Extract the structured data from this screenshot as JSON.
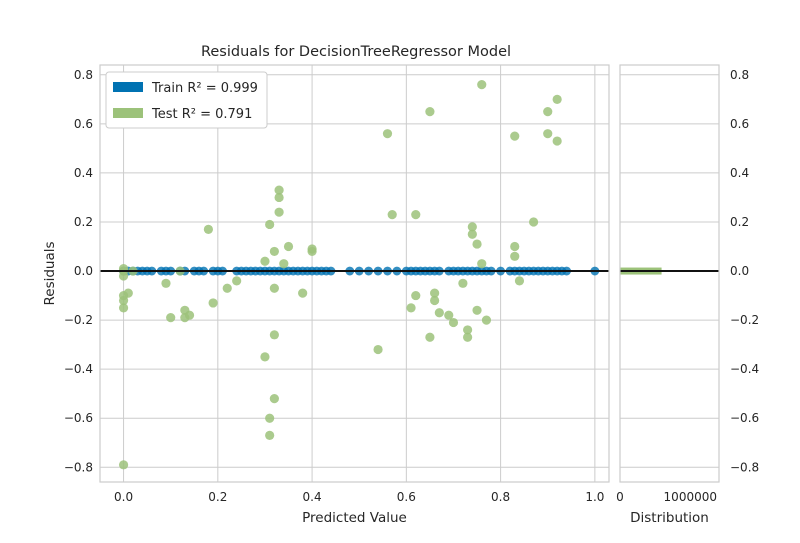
{
  "chart_data": {
    "type": "scatter",
    "title": "Residuals for DecisionTreeRegressor Model",
    "xlabel": "Predicted Value",
    "ylabel": "Residuals",
    "xlim": [
      -0.05,
      1.03
    ],
    "ylim": [
      -0.86,
      0.84
    ],
    "xticks": [
      0.0,
      0.2,
      0.4,
      0.6,
      0.8,
      1.0
    ],
    "xtick_labels": [
      "0.0",
      "0.2",
      "0.4",
      "0.6",
      "0.8",
      "1.0"
    ],
    "yticks": [
      -0.8,
      -0.6,
      -0.4,
      -0.2,
      0.0,
      0.2,
      0.4,
      0.6,
      0.8
    ],
    "ytick_labels": [
      "−0.8",
      "−0.6",
      "−0.4",
      "−0.2",
      "0.0",
      "0.2",
      "0.4",
      "0.6",
      "0.8"
    ],
    "grid": true,
    "legend_position": "top-left",
    "reference_line": 0,
    "series": [
      {
        "name": "Train",
        "legend_label": "Train R² = 0.999",
        "color": "#0072B2",
        "x": [
          0.0,
          0.0,
          0.01,
          0.02,
          0.03,
          0.04,
          0.05,
          0.06,
          0.08,
          0.09,
          0.1,
          0.12,
          0.13,
          0.15,
          0.16,
          0.17,
          0.19,
          0.2,
          0.21,
          0.24,
          0.25,
          0.26,
          0.27,
          0.28,
          0.29,
          0.3,
          0.31,
          0.32,
          0.33,
          0.34,
          0.35,
          0.36,
          0.37,
          0.38,
          0.39,
          0.4,
          0.41,
          0.42,
          0.43,
          0.44,
          0.48,
          0.5,
          0.52,
          0.54,
          0.56,
          0.58,
          0.6,
          0.61,
          0.62,
          0.63,
          0.64,
          0.65,
          0.66,
          0.67,
          0.69,
          0.7,
          0.71,
          0.72,
          0.73,
          0.74,
          0.75,
          0.76,
          0.77,
          0.78,
          0.8,
          0.82,
          0.83,
          0.84,
          0.85,
          0.86,
          0.87,
          0.88,
          0.89,
          0.9,
          0.91,
          0.92,
          0.93,
          0.94,
          1.0
        ],
        "y": [
          0.0,
          0.0,
          0.0,
          0.0,
          0.0,
          0.0,
          0.0,
          0.0,
          0.0,
          0.0,
          0.0,
          0.0,
          0.0,
          0.0,
          0.0,
          0.0,
          0.0,
          0.0,
          0.0,
          0.0,
          0.0,
          0.0,
          0.0,
          0.0,
          0.0,
          0.0,
          0.0,
          0.0,
          0.0,
          0.0,
          0.0,
          0.0,
          0.0,
          0.0,
          0.0,
          0.0,
          0.0,
          0.0,
          0.0,
          0.0,
          0.0,
          0.0,
          0.0,
          0.0,
          0.0,
          0.0,
          0.0,
          0.0,
          0.0,
          0.0,
          0.0,
          0.0,
          0.0,
          0.0,
          0.0,
          0.0,
          0.0,
          0.0,
          0.0,
          0.0,
          0.0,
          0.0,
          0.0,
          0.0,
          0.0,
          0.0,
          0.0,
          0.0,
          0.0,
          0.0,
          0.0,
          0.0,
          0.0,
          0.0,
          0.0,
          0.0,
          0.0,
          0.0,
          0.0
        ]
      },
      {
        "name": "Test",
        "legend_label": "Test R² = 0.791",
        "color": "#9CC27A",
        "x": [
          0.0,
          0.0,
          0.0,
          0.0,
          0.0,
          0.0,
          0.0,
          0.01,
          0.02,
          0.09,
          0.1,
          0.12,
          0.13,
          0.13,
          0.14,
          0.18,
          0.19,
          0.22,
          0.24,
          0.3,
          0.31,
          0.32,
          0.32,
          0.33,
          0.33,
          0.33,
          0.34,
          0.35,
          0.31,
          0.32,
          0.3,
          0.32,
          0.31,
          0.38,
          0.4,
          0.4,
          0.54,
          0.56,
          0.57,
          0.62,
          0.62,
          0.65,
          0.66,
          0.66,
          0.67,
          0.69,
          0.65,
          0.73,
          0.74,
          0.74,
          0.75,
          0.75,
          0.76,
          0.77,
          0.76,
          0.83,
          0.83,
          0.83,
          0.84,
          0.87,
          0.9,
          0.9,
          0.92,
          0.92,
          0.73,
          0.72,
          0.7,
          0.61
        ],
        "y": [
          -0.79,
          -0.15,
          -0.12,
          -0.1,
          -0.02,
          0.0,
          0.01,
          -0.09,
          0.0,
          -0.05,
          -0.19,
          0.0,
          -0.16,
          -0.19,
          -0.18,
          0.17,
          -0.13,
          -0.07,
          -0.04,
          -0.35,
          -0.6,
          -0.52,
          -0.26,
          0.33,
          0.3,
          0.24,
          0.03,
          0.1,
          0.19,
          0.08,
          0.04,
          -0.07,
          -0.67,
          -0.09,
          0.09,
          0.08,
          -0.32,
          0.56,
          0.23,
          0.23,
          -0.1,
          0.65,
          -0.09,
          -0.12,
          -0.17,
          -0.18,
          -0.27,
          -0.27,
          0.18,
          0.15,
          0.11,
          -0.16,
          0.76,
          -0.2,
          0.03,
          0.55,
          0.06,
          0.1,
          -0.04,
          0.2,
          0.65,
          0.56,
          0.7,
          0.53,
          -0.24,
          -0.05,
          -0.21,
          -0.15
        ]
      }
    ],
    "distribution_panel": {
      "xlabel": "Distribution",
      "xticks": [
        0,
        1000000
      ],
      "xtick_labels": [
        "0",
        "1000000"
      ],
      "xlim": [
        0,
        1000000
      ],
      "ylim": [
        -0.86,
        0.84
      ],
      "ytick_labels": [
        "−0.8",
        "−0.6",
        "−0.4",
        "−0.2",
        "0.0",
        "0.2",
        "0.4",
        "0.6",
        "0.8"
      ],
      "bar": {
        "y": 0.0,
        "count": 420000,
        "color": "#9CC27A"
      }
    }
  }
}
